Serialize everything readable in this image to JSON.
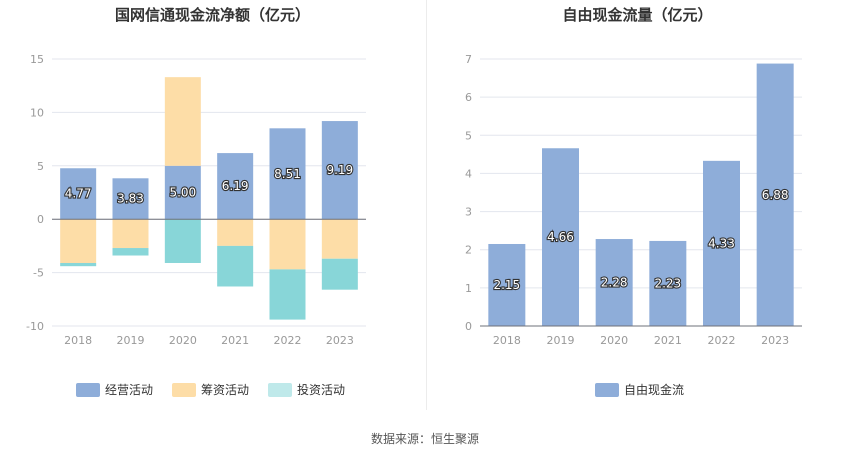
{
  "source": "数据来源：恒生聚源",
  "chart_data": [
    {
      "type": "bar",
      "stacked": true,
      "title": "国网信通现金流净额（亿元）",
      "categories": [
        "2018",
        "2019",
        "2020",
        "2021",
        "2022",
        "2023"
      ],
      "ylim": [
        -10,
        15
      ],
      "yticks": [
        -10,
        -5,
        0,
        5,
        10,
        15
      ],
      "grid": true,
      "legend_position": "bottom",
      "series": [
        {
          "name": "经营活动",
          "color": "#8eadd9",
          "values": [
            4.77,
            3.83,
            5.0,
            6.19,
            8.51,
            9.19
          ],
          "labels": [
            "4.77",
            "3.83",
            "5.00",
            "6.19",
            "8.51",
            "9.19"
          ]
        },
        {
          "name": "筹资活动",
          "color": "#fddda7",
          "values": [
            -4.1,
            -2.7,
            8.3,
            -2.5,
            -4.7,
            -3.7
          ]
        },
        {
          "name": "投资活动",
          "color": "#88d6d8",
          "legend_color": "#bfe9ea",
          "values": [
            -0.3,
            -0.7,
            -4.1,
            -3.8,
            -4.7,
            -2.9
          ]
        }
      ]
    },
    {
      "type": "bar",
      "title": "自由现金流量（亿元）",
      "categories": [
        "2018",
        "2019",
        "2020",
        "2021",
        "2022",
        "2023"
      ],
      "ylim": [
        0,
        7
      ],
      "yticks": [
        0,
        1,
        2,
        3,
        4,
        5,
        6,
        7
      ],
      "grid": true,
      "legend_position": "bottom",
      "series": [
        {
          "name": "自由现金流",
          "color": "#8eadd9",
          "values": [
            2.15,
            4.66,
            2.28,
            2.23,
            4.33,
            6.88
          ],
          "labels": [
            "2.15",
            "4.66",
            "2.28",
            "2.23",
            "4.33",
            "6.88"
          ]
        }
      ]
    }
  ]
}
